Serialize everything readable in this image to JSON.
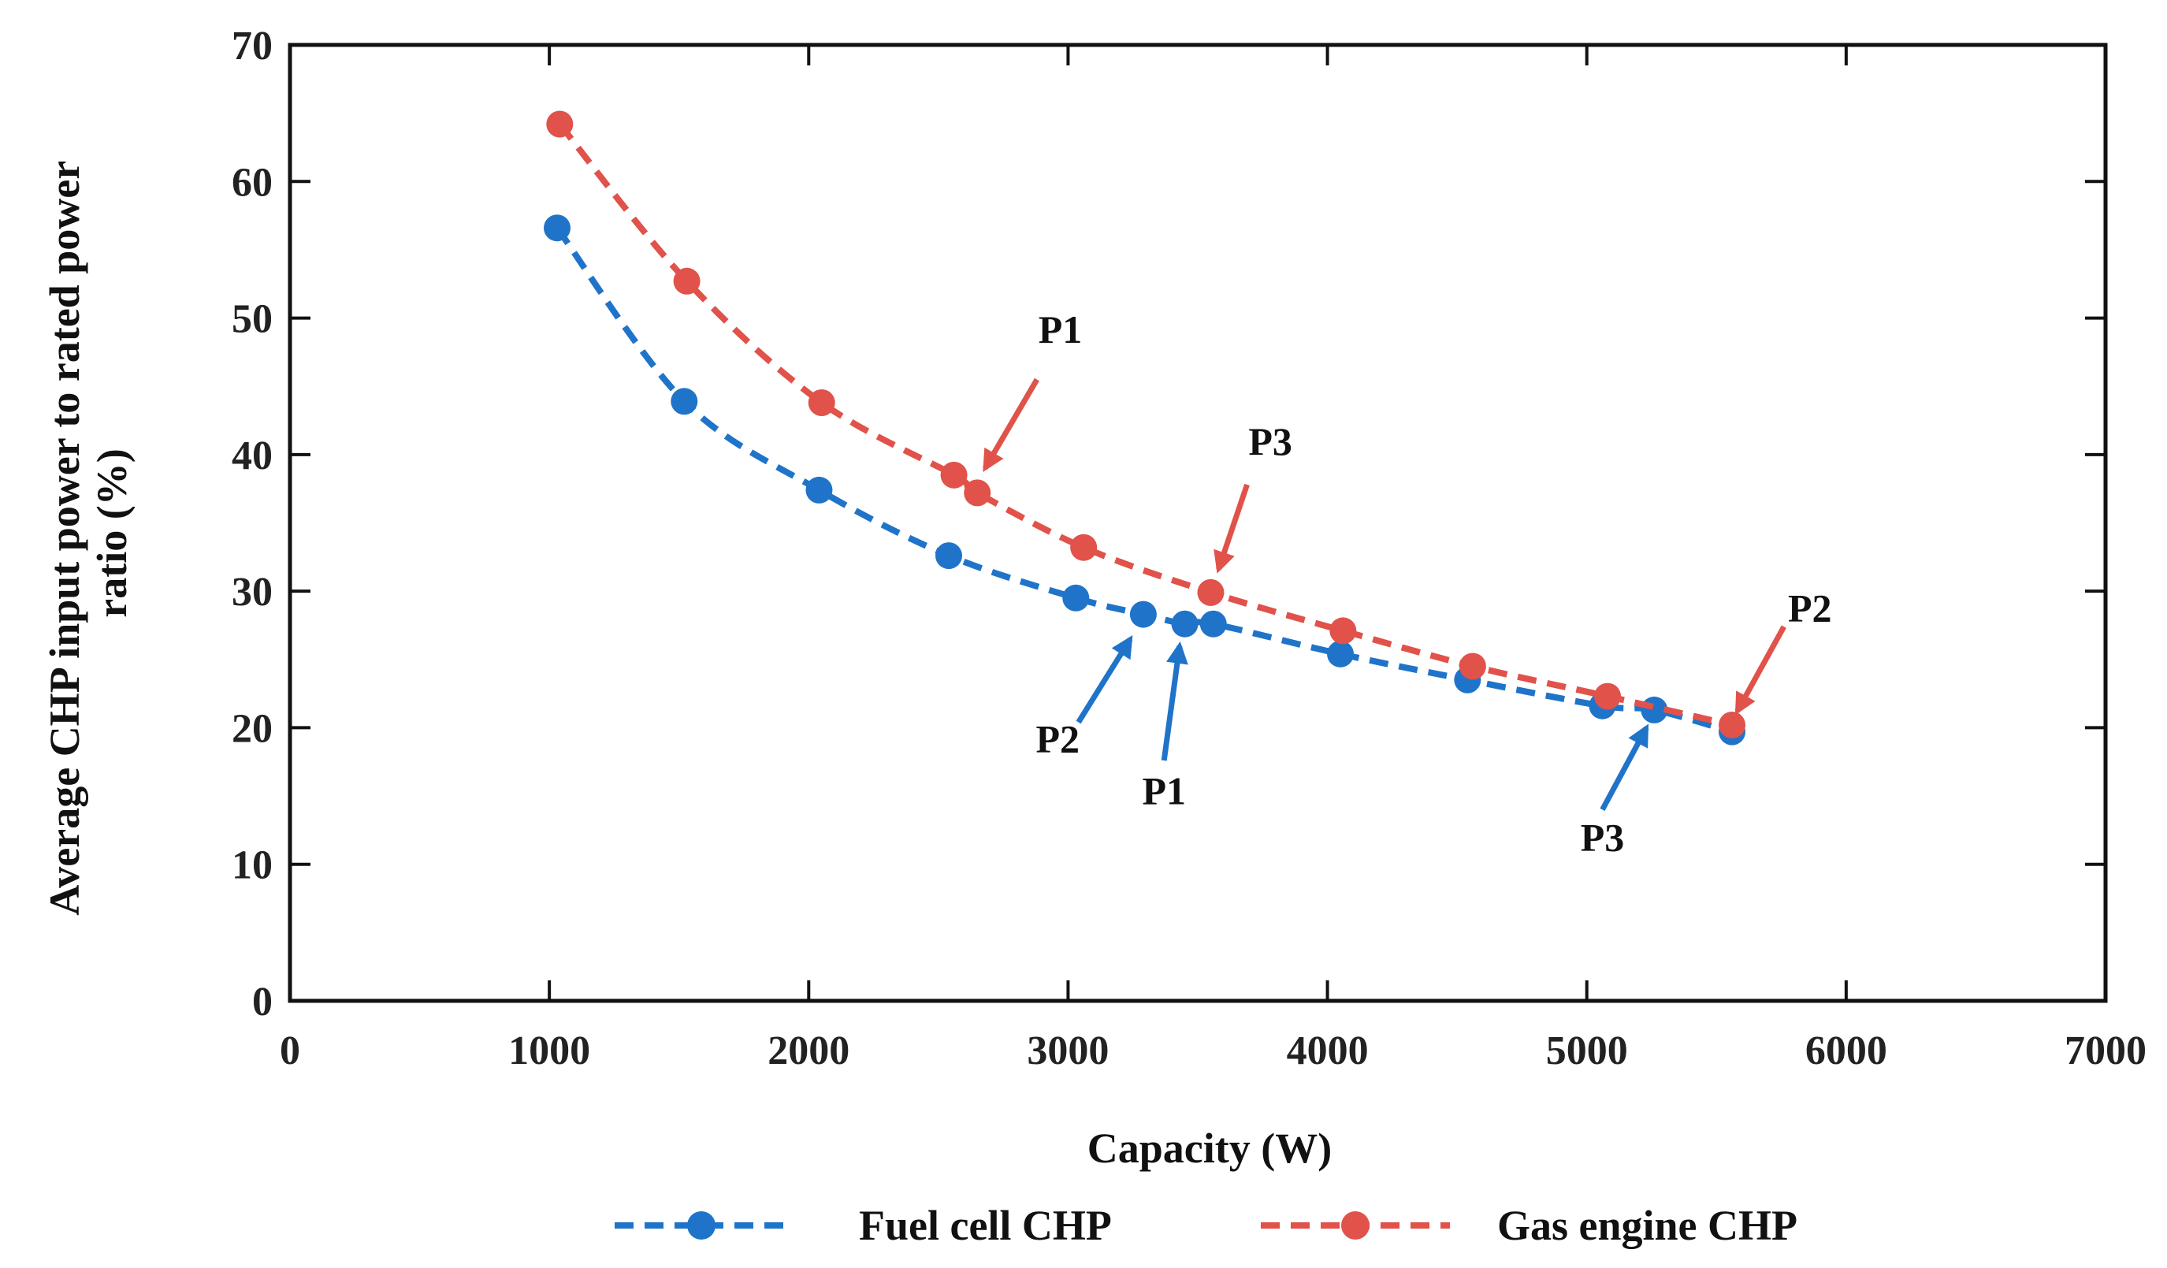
{
  "chart_data": {
    "type": "line",
    "xlabel": "Capacity (W)",
    "ylabel_line1": "Average CHP input power to rated power",
    "ylabel_line2": "ratio (%)",
    "xlim": [
      0,
      7000
    ],
    "ylim": [
      0,
      70
    ],
    "xticks": [
      0,
      1000,
      2000,
      3000,
      4000,
      5000,
      6000,
      7000
    ],
    "yticks": [
      0,
      10,
      20,
      30,
      40,
      50,
      60,
      70
    ],
    "grid": false,
    "legend_position": "bottom",
    "series": [
      {
        "name": "Fuel cell CHP",
        "color": "#1f74c9",
        "line_style": "dashed",
        "marker": "circle",
        "x": [
          1030,
          1520,
          2040,
          2540,
          3030,
          3290,
          3450,
          3560,
          4050,
          4540,
          5060,
          5260,
          5560
        ],
        "y": [
          56.6,
          43.9,
          37.4,
          32.6,
          29.5,
          28.3,
          27.6,
          27.6,
          25.4,
          23.5,
          21.6,
          21.3,
          19.7
        ]
      },
      {
        "name": "Gas engine CHP",
        "color": "#e0524a",
        "line_style": "dashed",
        "marker": "circle",
        "x": [
          1040,
          1530,
          2050,
          2560,
          2650,
          3060,
          3550,
          4060,
          4560,
          5080,
          5560
        ],
        "y": [
          64.2,
          52.7,
          43.8,
          38.5,
          37.2,
          33.2,
          29.9,
          27.1,
          24.5,
          22.3,
          20.2
        ]
      }
    ],
    "annotations": [
      {
        "text": "P1",
        "series": "Gas engine CHP",
        "color": "#e0524a",
        "tail": [
          2880,
          45.5
        ],
        "head": [
          2680,
          39.0
        ],
        "label_at": [
          2970,
          48.2
        ]
      },
      {
        "text": "P3",
        "series": "Gas engine CHP",
        "color": "#e0524a",
        "tail": [
          3690,
          37.8
        ],
        "head": [
          3580,
          31.6
        ],
        "label_at": [
          3780,
          40.0
        ]
      },
      {
        "text": "P2",
        "series": "Gas engine CHP",
        "color": "#e0524a",
        "tail": [
          5760,
          27.4
        ],
        "head": [
          5580,
          21.2
        ],
        "label_at": [
          5860,
          27.8
        ]
      },
      {
        "text": "P2",
        "series": "Fuel cell CHP",
        "color": "#1f74c9",
        "tail": [
          3040,
          20.4
        ],
        "head": [
          3240,
          26.5
        ],
        "label_at": [
          2960,
          18.2
        ]
      },
      {
        "text": "P1",
        "series": "Fuel cell CHP",
        "color": "#1f74c9",
        "tail": [
          3370,
          17.6
        ],
        "head": [
          3430,
          26.0
        ],
        "label_at": [
          3370,
          14.4
        ]
      },
      {
        "text": "P3",
        "series": "Fuel cell CHP",
        "color": "#1f74c9",
        "tail": [
          5060,
          14.0
        ],
        "head": [
          5230,
          20.0
        ],
        "label_at": [
          5060,
          11.0
        ]
      }
    ]
  }
}
